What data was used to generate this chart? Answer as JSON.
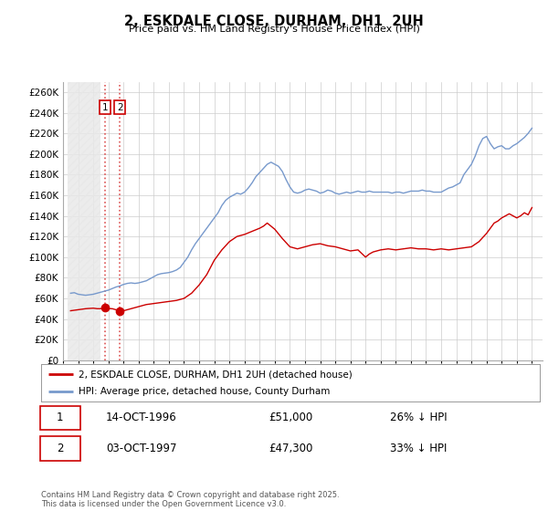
{
  "title": "2, ESKDALE CLOSE, DURHAM, DH1  2UH",
  "subtitle": "Price paid vs. HM Land Registry's House Price Index (HPI)",
  "ylim": [
    0,
    270000
  ],
  "ytick_step": 20000,
  "xlim_start": 1994.3,
  "xlim_end": 2025.7,
  "background_color": "#ffffff",
  "plot_bg_color": "#ffffff",
  "grid_color": "#cccccc",
  "red_line_color": "#cc0000",
  "blue_line_color": "#7799cc",
  "sale_marker_color": "#cc0000",
  "vline_color": "#dd5555",
  "legend_label_red": "2, ESKDALE CLOSE, DURHAM, DH1 2UH (detached house)",
  "legend_label_blue": "HPI: Average price, detached house, County Durham",
  "sale1_x": 1996.79,
  "sale1_y": 51000,
  "sale2_x": 1997.76,
  "sale2_y": 47300,
  "sale1_date": "14-OCT-1996",
  "sale1_price": "£51,000",
  "sale1_hpi": "26% ↓ HPI",
  "sale2_date": "03-OCT-1997",
  "sale2_price": "£47,300",
  "sale2_hpi": "33% ↓ HPI",
  "footnote": "Contains HM Land Registry data © Crown copyright and database right 2025.\nThis data is licensed under the Open Government Licence v3.0.",
  "hpi_data_x": [
    1994.5,
    1994.75,
    1995.0,
    1995.25,
    1995.5,
    1995.75,
    1996.0,
    1996.25,
    1996.5,
    1996.75,
    1997.0,
    1997.25,
    1997.5,
    1997.75,
    1998.0,
    1998.25,
    1998.5,
    1998.75,
    1999.0,
    1999.25,
    1999.5,
    1999.75,
    2000.0,
    2000.25,
    2000.5,
    2000.75,
    2001.0,
    2001.25,
    2001.5,
    2001.75,
    2002.0,
    2002.25,
    2002.5,
    2002.75,
    2003.0,
    2003.25,
    2003.5,
    2003.75,
    2004.0,
    2004.25,
    2004.5,
    2004.75,
    2005.0,
    2005.25,
    2005.5,
    2005.75,
    2006.0,
    2006.25,
    2006.5,
    2006.75,
    2007.0,
    2007.25,
    2007.5,
    2007.75,
    2008.0,
    2008.25,
    2008.5,
    2008.75,
    2009.0,
    2009.25,
    2009.5,
    2009.75,
    2010.0,
    2010.25,
    2010.5,
    2010.75,
    2011.0,
    2011.25,
    2011.5,
    2011.75,
    2012.0,
    2012.25,
    2012.5,
    2012.75,
    2013.0,
    2013.25,
    2013.5,
    2013.75,
    2014.0,
    2014.25,
    2014.5,
    2014.75,
    2015.0,
    2015.25,
    2015.5,
    2015.75,
    2016.0,
    2016.25,
    2016.5,
    2016.75,
    2017.0,
    2017.25,
    2017.5,
    2017.75,
    2018.0,
    2018.25,
    2018.5,
    2018.75,
    2019.0,
    2019.25,
    2019.5,
    2019.75,
    2020.0,
    2020.25,
    2020.5,
    2020.75,
    2021.0,
    2021.25,
    2021.5,
    2021.75,
    2022.0,
    2022.25,
    2022.5,
    2022.75,
    2023.0,
    2023.25,
    2023.5,
    2023.75,
    2024.0,
    2024.25,
    2024.5,
    2024.75,
    2025.0
  ],
  "hpi_data_y": [
    65000,
    65500,
    64000,
    63500,
    63000,
    63500,
    64000,
    65000,
    66000,
    67000,
    68000,
    69500,
    71000,
    72000,
    73500,
    74500,
    75000,
    74500,
    75000,
    76000,
    77000,
    79000,
    81000,
    83000,
    84000,
    84500,
    85000,
    86000,
    87500,
    90000,
    95000,
    100000,
    107000,
    113000,
    118000,
    123000,
    128000,
    133000,
    138000,
    143000,
    150000,
    155000,
    158000,
    160000,
    162000,
    161000,
    163000,
    167000,
    172000,
    178000,
    182000,
    186000,
    190000,
    192000,
    190000,
    188000,
    183000,
    175000,
    168000,
    163000,
    162000,
    163000,
    165000,
    166000,
    165000,
    164000,
    162000,
    163000,
    165000,
    164000,
    162000,
    161000,
    162000,
    163000,
    162000,
    163000,
    164000,
    163000,
    163000,
    164000,
    163000,
    163000,
    163000,
    163000,
    163000,
    162000,
    163000,
    163000,
    162000,
    163000,
    164000,
    164000,
    164000,
    165000,
    164000,
    164000,
    163000,
    163000,
    163000,
    165000,
    167000,
    168000,
    170000,
    172000,
    180000,
    185000,
    190000,
    198000,
    208000,
    215000,
    217000,
    210000,
    205000,
    207000,
    208000,
    205000,
    205000,
    208000,
    210000,
    213000,
    216000,
    220000,
    225000
  ],
  "red_data_x": [
    1994.5,
    1995.0,
    1995.5,
    1996.0,
    1996.25,
    1996.5,
    1996.79,
    1997.0,
    1997.25,
    1997.5,
    1997.76,
    1998.0,
    1998.5,
    1999.0,
    1999.5,
    2000.0,
    2000.5,
    2001.0,
    2001.5,
    2002.0,
    2002.5,
    2003.0,
    2003.5,
    2004.0,
    2004.5,
    2005.0,
    2005.5,
    2006.0,
    2006.5,
    2007.0,
    2007.25,
    2007.5,
    2008.0,
    2008.5,
    2009.0,
    2009.5,
    2010.0,
    2010.5,
    2011.0,
    2011.5,
    2012.0,
    2012.5,
    2013.0,
    2013.5,
    2014.0,
    2014.25,
    2014.5,
    2014.75,
    2015.0,
    2015.5,
    2016.0,
    2016.5,
    2017.0,
    2017.5,
    2018.0,
    2018.5,
    2019.0,
    2019.5,
    2020.0,
    2020.5,
    2021.0,
    2021.5,
    2022.0,
    2022.25,
    2022.5,
    2022.75,
    2023.0,
    2023.25,
    2023.5,
    2023.75,
    2024.0,
    2024.25,
    2024.5,
    2024.75,
    2025.0
  ],
  "red_data_y": [
    48000,
    49000,
    50000,
    50500,
    50000,
    50000,
    51000,
    50000,
    50000,
    49000,
    47300,
    48000,
    50000,
    52000,
    54000,
    55000,
    56000,
    57000,
    58000,
    60000,
    65000,
    73000,
    83000,
    97000,
    107000,
    115000,
    120000,
    122000,
    125000,
    128000,
    130000,
    133000,
    127000,
    118000,
    110000,
    108000,
    110000,
    112000,
    113000,
    111000,
    110000,
    108000,
    106000,
    107000,
    100000,
    103000,
    105000,
    106000,
    107000,
    108000,
    107000,
    108000,
    109000,
    108000,
    108000,
    107000,
    108000,
    107000,
    108000,
    109000,
    110000,
    115000,
    123000,
    128000,
    133000,
    135000,
    138000,
    140000,
    142000,
    140000,
    138000,
    140000,
    143000,
    141000,
    148000
  ]
}
